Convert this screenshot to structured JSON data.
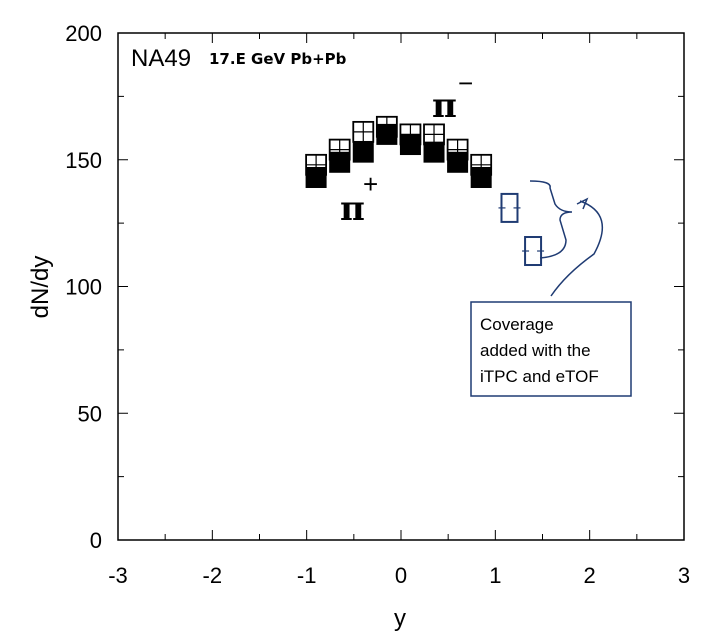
{
  "chart_data": {
    "type": "scatter",
    "xlabel": "y",
    "ylabel": "dN/dy",
    "xlim": [
      -3,
      3
    ],
    "ylim": [
      0,
      200
    ],
    "x_ticks": [
      "-3",
      "-2",
      "-1",
      "0",
      "1",
      "2",
      "3"
    ],
    "y_ticks": [
      "0",
      "50",
      "100",
      "150",
      "200"
    ],
    "experiment_label": "NA49",
    "energy_label": "17.E GeV Pb+Pb",
    "series": [
      {
        "name": "π⁻",
        "marker": "open-square",
        "color": "#000000",
        "x": [
          -0.9,
          -0.65,
          -0.4,
          -0.15,
          0.1,
          0.35,
          0.6,
          0.85
        ],
        "y": [
          148,
          154,
          161,
          163,
          160,
          160,
          154,
          148
        ]
      },
      {
        "name": "π⁺",
        "marker": "filled-square",
        "color": "#000000",
        "x": [
          -0.9,
          -0.65,
          -0.4,
          -0.15,
          0.1,
          0.35,
          0.6,
          0.85
        ],
        "y": [
          143,
          149,
          153,
          160,
          156,
          153,
          149,
          143
        ]
      },
      {
        "name": "",
        "marker": "open-rectangle",
        "color": "#1f3b73",
        "x": [
          1.15,
          1.4
        ],
        "y": [
          131,
          114
        ]
      }
    ],
    "annotations": {
      "pi_symbol": "π",
      "pi_minus_sup": "−",
      "pi_plus_sup": "+",
      "callout_lines": [
        "Coverage",
        "added with the",
        "iTPC and eTOF"
      ],
      "callout_color": "#1f3b73"
    }
  }
}
